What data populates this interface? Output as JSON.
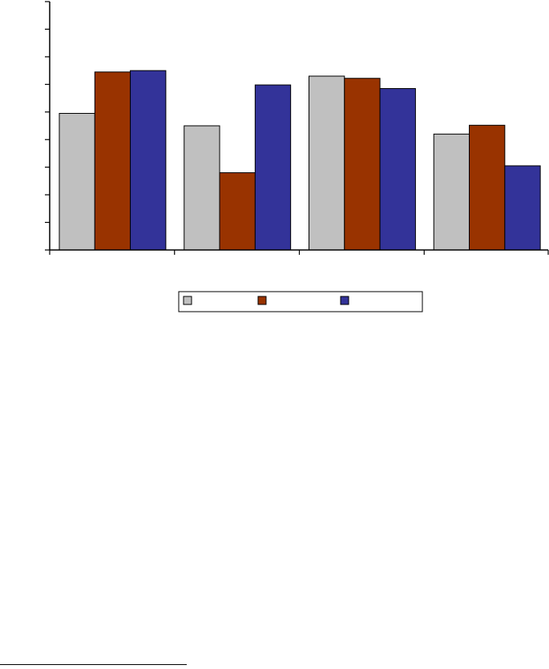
{
  "chart_data": {
    "type": "bar",
    "categories": [
      "",
      "",
      "",
      ""
    ],
    "series": [
      {
        "values": [
          4.95,
          4.5,
          6.3,
          4.2
        ]
      },
      {
        "values": [
          6.45,
          2.8,
          6.22,
          4.52
        ]
      },
      {
        "values": [
          6.5,
          5.98,
          5.85,
          3.05
        ]
      }
    ],
    "ylim": [
      0,
      9
    ],
    "y_ticks": [
      0,
      1,
      2,
      3,
      4,
      5,
      6,
      7,
      8,
      9
    ],
    "grid": false,
    "title": "",
    "xlabel": "",
    "ylabel": "",
    "legend_position": "bottom",
    "colors": [
      "#C0C0C0",
      "#993300",
      "#333399"
    ]
  }
}
